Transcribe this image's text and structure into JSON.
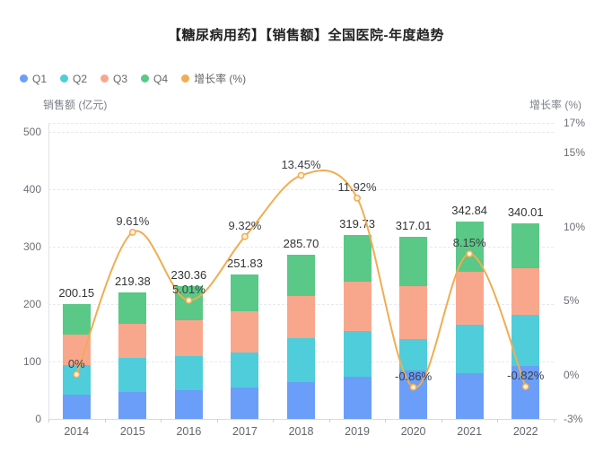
{
  "title": "【糖尿病用药】【销售额】全国医院-年度趋势",
  "legend": {
    "items": [
      {
        "label": "Q1"
      },
      {
        "label": "Q2"
      },
      {
        "label": "Q3"
      },
      {
        "label": "Q4"
      },
      {
        "label": "增长率 (%)"
      }
    ]
  },
  "chart_data": {
    "type": "bar",
    "subtype": "stacked-bar-with-line",
    "title": "【糖尿病用药】【销售额】全国医院-年度趋势",
    "categories": [
      "2014",
      "2015",
      "2016",
      "2017",
      "2018",
      "2019",
      "2020",
      "2021",
      "2022"
    ],
    "series": [
      {
        "name": "Q1",
        "type": "bar",
        "stack": true,
        "color": "#6b9ef9",
        "values": [
          41.8,
          47.4,
          50.6,
          55.1,
          64.6,
          72.6,
          84.0,
          79.2,
          92.0
        ]
      },
      {
        "name": "Q2",
        "type": "bar",
        "stack": true,
        "color": "#4fcdda",
        "values": [
          51.5,
          58.3,
          58.0,
          60.3,
          75.2,
          80.4,
          54.5,
          84.1,
          89.5
        ]
      },
      {
        "name": "Q3",
        "type": "bar",
        "stack": true,
        "color": "#f9a78c",
        "values": [
          52.9,
          60.5,
          63.3,
          71.9,
          74.5,
          85.7,
          92.0,
          92.9,
          80.5
        ]
      },
      {
        "name": "Q4",
        "type": "bar",
        "stack": true,
        "color": "#5ac886",
        "values": [
          53.95,
          53.18,
          58.46,
          64.53,
          71.4,
          81.03,
          86.51,
          86.64,
          78.01
        ]
      },
      {
        "name": "增长率 (%)",
        "type": "line",
        "axis": "right",
        "color": "#f0ad52",
        "marker_fill": "#fdf1dc",
        "values": [
          0,
          9.61,
          5.01,
          9.32,
          13.45,
          11.92,
          -0.86,
          8.15,
          -0.82
        ]
      }
    ],
    "bar_totals": [
      200.15,
      219.38,
      230.36,
      251.83,
      285.7,
      319.73,
      317.01,
      342.84,
      340.01
    ],
    "bar_total_labels": [
      "200.15",
      "219.38",
      "230.36",
      "251.83",
      "285.70",
      "319.73",
      "317.01",
      "342.84",
      "340.01"
    ],
    "line_point_labels": [
      "0%",
      "9.61%",
      "5.01%",
      "9.32%",
      "13.45%",
      "11.92%",
      "-0.86%",
      "8.15%",
      "-0.82%"
    ],
    "left_axis": {
      "name": "销售额 (亿元)",
      "range": [
        0,
        500
      ],
      "ticks": [
        0,
        100,
        200,
        300,
        400,
        500
      ],
      "tick_labels": [
        "0",
        "100",
        "200",
        "300",
        "400",
        "500"
      ]
    },
    "right_axis": {
      "name": "增长率 (%)",
      "range": [
        -3,
        17
      ],
      "ticks": [
        -3,
        0,
        5,
        10,
        15,
        17
      ],
      "tick_labels": [
        "-3%",
        "0%",
        "5%",
        "10%",
        "15%",
        "17%"
      ]
    },
    "legend_position": "top-left",
    "grid": "horizontal dashed"
  }
}
